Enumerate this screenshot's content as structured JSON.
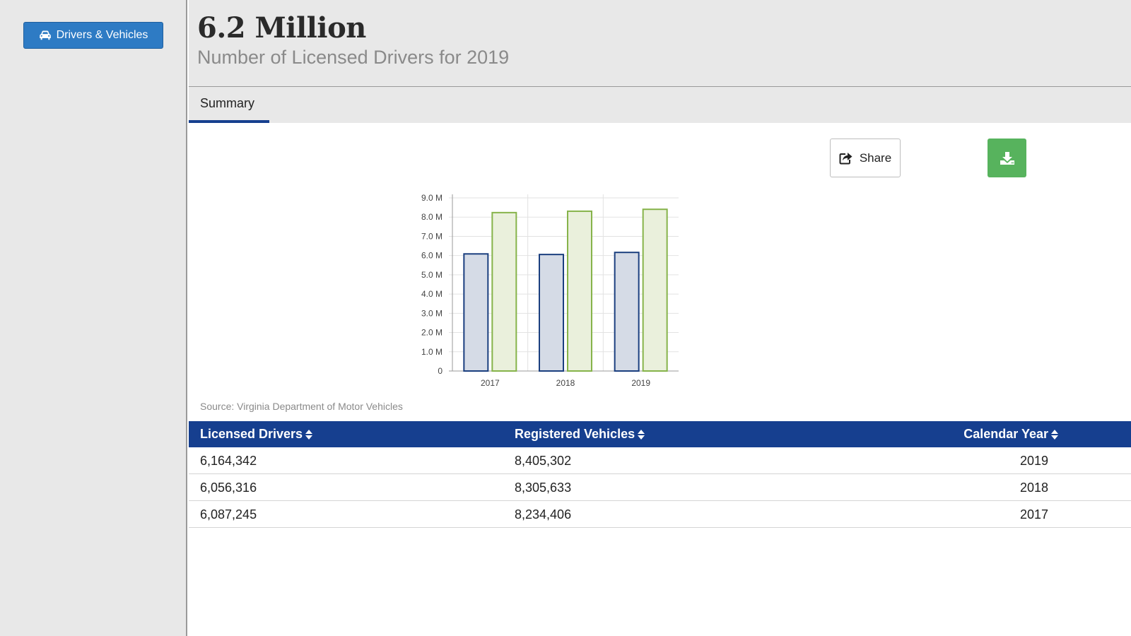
{
  "sidebar": {
    "nav_button_label": "Drivers & Vehicles"
  },
  "header": {
    "big_number": "6.2 Million",
    "subtitle": "Number of Licensed Drivers for 2019"
  },
  "tabs": [
    {
      "label": "Summary",
      "active": true
    }
  ],
  "toolbar": {
    "share_label": "Share",
    "download_color": "#57b35d"
  },
  "chart_data": {
    "type": "bar",
    "categories": [
      "2017",
      "2018",
      "2019"
    ],
    "series": [
      {
        "values": [
          6087245,
          6056316,
          6164342
        ],
        "color": "#1b3f7f",
        "fill": "#d5dbe6"
      },
      {
        "values": [
          8234406,
          8305633,
          8405302
        ],
        "color": "#86b34a",
        "fill": "#eaf0dc"
      }
    ],
    "ylim": [
      0,
      9000000
    ],
    "yticks": [
      {
        "value": 0,
        "label": "0"
      },
      {
        "value": 1000000,
        "label": "1.0 M"
      },
      {
        "value": 2000000,
        "label": "2.0 M"
      },
      {
        "value": 3000000,
        "label": "3.0 M"
      },
      {
        "value": 4000000,
        "label": "4.0 M"
      },
      {
        "value": 5000000,
        "label": "5.0 M"
      },
      {
        "value": 6000000,
        "label": "6.0 M"
      },
      {
        "value": 7000000,
        "label": "7.0 M"
      },
      {
        "value": 8000000,
        "label": "8.0 M"
      },
      {
        "value": 9000000,
        "label": "9.0 M"
      }
    ],
    "grid": true
  },
  "source_text": "Source: Virginia Department of Motor Vehicles",
  "table": {
    "headers": {
      "licensed_drivers": "Licensed Drivers",
      "registered_vehicles": "Registered Vehicles",
      "calendar_year": "Calendar Year"
    },
    "rows": [
      {
        "licensed_drivers": "6,164,342",
        "registered_vehicles": "8,405,302",
        "calendar_year": "2019"
      },
      {
        "licensed_drivers": "6,056,316",
        "registered_vehicles": "8,305,633",
        "calendar_year": "2018"
      },
      {
        "licensed_drivers": "6,087,245",
        "registered_vehicles": "8,234,406",
        "calendar_year": "2017"
      }
    ],
    "header_color": "#163f8f"
  }
}
